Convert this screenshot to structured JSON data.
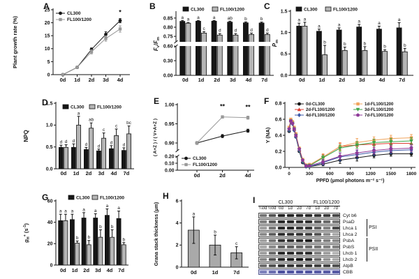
{
  "figure": {
    "background": "#ffffff"
  },
  "palette": {
    "cl300": "#161616",
    "fl_bar": "#b5b5b5",
    "fl_line": "#999999",
    "axis": "#111111"
  },
  "chart_data": [
    {
      "id": "A",
      "panel": "A",
      "type": "line",
      "ylabel": "Plant growth rate (%)",
      "yranges": [
        [
          0,
          25
        ]
      ],
      "yticks": [
        0,
        5,
        10,
        15,
        20,
        25
      ],
      "yticklabels": [
        "0",
        "5",
        "10",
        "15",
        "20",
        "25"
      ],
      "categories": [
        "0d",
        "1d",
        "2d",
        "3d",
        "4d"
      ],
      "series": [
        {
          "name": "CL300",
          "color": "#161616",
          "marker": "circle",
          "values": [
            0,
            2.8,
            9.7,
            15.5,
            20.8
          ],
          "errors": [
            0.2,
            0.4,
            0.6,
            1.0,
            0.8
          ]
        },
        {
          "name": "FL100/1200",
          "color": "#999999",
          "marker": "square",
          "values": [
            0,
            2.8,
            8.8,
            13.9,
            17.6
          ],
          "errors": [
            0.2,
            0.4,
            0.8,
            1.0,
            1.2
          ]
        }
      ],
      "annotations": [
        {
          "cat": 4,
          "value": 23.2,
          "text": "*"
        }
      ]
    },
    {
      "id": "B",
      "panel": "B",
      "type": "bar",
      "ylabel_rich": [
        {
          "t": "F",
          "i": 1
        },
        {
          "t": "v",
          "pos": "sub"
        },
        {
          "t": "/"
        },
        {
          "t": "F",
          "i": 1
        },
        {
          "t": "m",
          "pos": "sub"
        }
      ],
      "yranges": [
        [
          0,
          0.6
        ],
        [
          0.72,
          0.88
        ]
      ],
      "yticks": [
        0,
        0.3,
        0.6,
        0.75,
        0.8,
        0.85
      ],
      "yticklabels": [
        "0.00",
        "0.30",
        "0.60",
        "0.75",
        "0.80",
        "0.85"
      ],
      "categories": [
        "0d",
        "1d",
        "2d",
        "3d",
        "4d",
        "7d"
      ],
      "series": [
        {
          "name": "CL300",
          "color": "#161616",
          "values": [
            0.832,
            0.833,
            0.833,
            0.828,
            0.824,
            0.823
          ],
          "errors": [
            0.005,
            0.004,
            0.004,
            0.005,
            0.005,
            0.005
          ],
          "letters": [
            "a",
            "a",
            "a",
            "ab",
            "b",
            "b"
          ]
        },
        {
          "name": "FL100/1200",
          "color": "#b5b5b5",
          "values": [
            0.822,
            0.768,
            0.757,
            0.757,
            0.76,
            0.76
          ],
          "errors": [
            0.004,
            0.008,
            0.008,
            0.008,
            0.008,
            0.008
          ],
          "letters": [
            "a",
            "c",
            "d",
            "d",
            "d",
            "d"
          ]
        }
      ]
    },
    {
      "id": "C",
      "panel": "C",
      "type": "bar",
      "ylabel_rich": [
        {
          "t": "P",
          "i": 1
        },
        {
          "t": "m",
          "pos": "sub"
        }
      ],
      "yranges": [
        [
          0,
          1.5
        ]
      ],
      "yticks": [
        0,
        0.5,
        1.0,
        1.5
      ],
      "yticklabels": [
        "0.0",
        "0.5",
        "1.0",
        "1.5"
      ],
      "categories": [
        "0d",
        "1d",
        "2d",
        "3d",
        "4d",
        "7d"
      ],
      "series": [
        {
          "name": "CL300",
          "color": "#161616",
          "values": [
            1.15,
            1.03,
            1.06,
            1.13,
            1.08,
            1.11
          ],
          "errors": [
            0.07,
            0.05,
            0.05,
            0.06,
            0.07,
            0.12
          ],
          "letters": [
            "a",
            "a",
            "a",
            "a",
            "a",
            "a"
          ]
        },
        {
          "name": "FL100/1200",
          "color": "#b5b5b5",
          "values": [
            1.15,
            0.48,
            0.58,
            0.58,
            0.56,
            0.55
          ],
          "errors": [
            0.09,
            0.22,
            0.08,
            0.09,
            0.04,
            0.08
          ],
          "letters": [
            "a",
            "b",
            "b",
            "b",
            "b",
            "b"
          ]
        }
      ]
    },
    {
      "id": "D",
      "panel": "D",
      "type": "bar",
      "ylabel": "NPQ",
      "yranges": [
        [
          0,
          1.5
        ]
      ],
      "yticks": [
        0,
        0.5,
        1.0,
        1.5
      ],
      "yticklabels": [
        "0.0",
        "0.5",
        "1.0",
        "1.5"
      ],
      "categories": [
        "0d",
        "1d",
        "2d",
        "3d",
        "4d",
        "7d"
      ],
      "series": [
        {
          "name": "CL300",
          "color": "#161616",
          "values": [
            0.49,
            0.49,
            0.44,
            0.41,
            0.46,
            0.42
          ],
          "errors": [
            0.05,
            0.08,
            0.05,
            0.04,
            0.07,
            0.06
          ],
          "letters": [
            "d",
            "d",
            "d",
            "d",
            "d",
            "d"
          ]
        },
        {
          "name": "FL100/1200",
          "color": "#b5b5b5",
          "values": [
            0.49,
            1.0,
            0.93,
            0.7,
            0.76,
            0.8
          ],
          "errors": [
            0.06,
            0.2,
            0.12,
            0.12,
            0.15,
            0.18
          ],
          "letters": [
            "d",
            "a",
            "ab",
            "c",
            "c",
            "bc"
          ]
        }
      ]
    },
    {
      "id": "E",
      "panel": "E",
      "type": "line",
      "ylabel": "( A+Z ) / ( V+A+Z )",
      "yranges": [
        [
          0,
          0.2
        ],
        [
          0.88,
          1.0
        ]
      ],
      "yticks": [
        0,
        0.1,
        0.2,
        0.9,
        0.95,
        1.0
      ],
      "yticklabels": [
        "0.00",
        "0.10",
        "0.20",
        "0.90",
        "0.95",
        "1.00"
      ],
      "categories": [
        "0d",
        "2d",
        "4d"
      ],
      "series": [
        {
          "name": "CL300",
          "color": "#161616",
          "marker": "circle",
          "values": [
            0.9,
            0.918,
            0.932
          ],
          "errors": [
            0.003,
            0.004,
            0.004
          ]
        },
        {
          "name": "FL100/1200",
          "color": "#999999",
          "marker": "square",
          "values": [
            0.9,
            0.968,
            0.966
          ],
          "errors": [
            0.004,
            0.003,
            0.004
          ]
        }
      ],
      "annotations": [
        {
          "cat": 1,
          "value": 0.99,
          "text": "**"
        },
        {
          "cat": 2,
          "value": 0.988,
          "text": "**"
        }
      ]
    },
    {
      "id": "F",
      "panel": "F",
      "type": "line",
      "xnumeric": true,
      "ylabel": "Y (NA)",
      "xlabel": "PPFD (μmol photons m⁻² s⁻¹)",
      "yranges": [
        [
          0,
          0.8
        ]
      ],
      "yticks": [
        0,
        0.2,
        0.4,
        0.6,
        0.8
      ],
      "yticklabels": [
        "0.0",
        "0.2",
        "0.4",
        "0.6",
        "0.8"
      ],
      "xmax": 1800,
      "xticks": [
        0,
        300,
        600,
        900,
        1200,
        1500,
        1800
      ],
      "xticklabels": [
        "0",
        "300",
        "600",
        "900",
        "1200",
        "1500",
        "1800"
      ],
      "x": [
        0,
        25,
        50,
        75,
        100,
        150,
        200,
        250,
        300,
        500,
        750,
        1000,
        1250,
        1500,
        1800
      ],
      "series": [
        {
          "name": "0d-CL300",
          "color": "#161616",
          "marker": "circle",
          "values": [
            0.45,
            0.58,
            0.55,
            0.47,
            0.38,
            0.2,
            0.06,
            0.01,
            0.01,
            0.04,
            0.09,
            0.12,
            0.15,
            0.17,
            0.17
          ],
          "errors": [
            0,
            0,
            0,
            0,
            0,
            0,
            0,
            0,
            0.01,
            0.02,
            0.04,
            0.04,
            0.03,
            0.03,
            0.03
          ]
        },
        {
          "name": "2d-FL100/1200",
          "color": "#e03c31",
          "marker": "tri",
          "values": [
            0.47,
            0.59,
            0.56,
            0.48,
            0.4,
            0.22,
            0.08,
            0.02,
            0.03,
            0.13,
            0.26,
            0.28,
            0.29,
            0.3,
            0.3
          ],
          "errors": [
            0,
            0,
            0,
            0,
            0,
            0,
            0,
            0,
            0.02,
            0.03,
            0.04,
            0.04,
            0.04,
            0.04,
            0.04
          ]
        },
        {
          "name": "4d-FL100/1200",
          "color": "#3a57a7",
          "marker": "diamond",
          "values": [
            0.46,
            0.57,
            0.54,
            0.46,
            0.38,
            0.21,
            0.07,
            0.01,
            0.01,
            0.06,
            0.13,
            0.16,
            0.19,
            0.21,
            0.22
          ],
          "errors": [
            0,
            0,
            0,
            0,
            0,
            0,
            0,
            0,
            0.01,
            0.03,
            0.05,
            0.05,
            0.04,
            0.04,
            0.04
          ]
        },
        {
          "name": "1d-FL100/1200",
          "color": "#f2a45c",
          "marker": "square",
          "values": [
            0.5,
            0.6,
            0.57,
            0.5,
            0.42,
            0.24,
            0.1,
            0.03,
            0.03,
            0.13,
            0.26,
            0.31,
            0.34,
            0.36,
            0.37
          ],
          "errors": [
            0,
            0,
            0,
            0,
            0,
            0,
            0,
            0,
            0.02,
            0.04,
            0.05,
            0.05,
            0.04,
            0.04,
            0.04
          ]
        },
        {
          "name": "3d-FL100/1200",
          "color": "#3da548",
          "marker": "tridown",
          "values": [
            0.47,
            0.58,
            0.55,
            0.48,
            0.4,
            0.22,
            0.08,
            0.02,
            0.02,
            0.12,
            0.24,
            0.28,
            0.31,
            0.32,
            0.33
          ],
          "errors": [
            0,
            0,
            0,
            0,
            0,
            0,
            0,
            0,
            0.02,
            0.03,
            0.04,
            0.04,
            0.04,
            0.04,
            0.04
          ]
        },
        {
          "name": "7d-FL100/1200",
          "color": "#8e3a98",
          "marker": "pent",
          "values": [
            0.48,
            0.58,
            0.55,
            0.48,
            0.4,
            0.23,
            0.09,
            0.02,
            0.02,
            0.07,
            0.14,
            0.18,
            0.21,
            0.23,
            0.24
          ],
          "errors": [
            0,
            0,
            0,
            0,
            0,
            0,
            0,
            0,
            0.01,
            0.03,
            0.04,
            0.04,
            0.04,
            0.04,
            0.04
          ]
        }
      ]
    },
    {
      "id": "G",
      "panel": "G",
      "type": "bar",
      "ylabel_rich": [
        {
          "t": "g",
          "i": 1
        },
        {
          "t": "H",
          "pos": "sub"
        },
        {
          "t": "+",
          "pos": "sup"
        },
        {
          "t": " (s"
        },
        {
          "t": "-1",
          "pos": "sup"
        },
        {
          "t": ")"
        }
      ],
      "yranges": [
        [
          0,
          60
        ]
      ],
      "yticks": [
        0,
        20,
        40,
        60
      ],
      "yticklabels": [
        "0",
        "20",
        "40",
        "60"
      ],
      "categories": [
        "0d",
        "1d",
        "2d",
        "3d",
        "4d",
        "7d"
      ],
      "series": [
        {
          "name": "CL300",
          "color": "#161616",
          "values": [
            41.5,
            42.5,
            44,
            44,
            46.5,
            43.5
          ],
          "errors": [
            6,
            5,
            5,
            4,
            6,
            7
          ],
          "letters": [
            "a",
            "a",
            "a",
            "a",
            "a",
            "a"
          ]
        },
        {
          "name": "FL100/1200",
          "color": "#b5b5b5",
          "values": [
            41.5,
            20.5,
            19,
            26,
            26,
            19
          ],
          "errors": [
            6,
            2,
            4,
            7,
            7,
            2
          ],
          "letters": [
            "a",
            "b",
            "b",
            "b",
            "b",
            "b"
          ]
        }
      ]
    },
    {
      "id": "H",
      "panel": "H",
      "type": "bar",
      "ylabel": "Grana stack thickness (μm)",
      "yranges": [
        [
          0,
          6
        ]
      ],
      "yticks": [
        0,
        2,
        4,
        6
      ],
      "yticklabels": [
        "0",
        "2",
        "4",
        "6"
      ],
      "categories": [
        "0d",
        "1d",
        "7d"
      ],
      "series": [
        {
          "name": "",
          "color": "#a9a9a9",
          "values": [
            3.35,
            2.0,
            1.3
          ],
          "errors": [
            1.2,
            0.9,
            0.55
          ],
          "letters": [
            "a",
            "b",
            "c"
          ]
        }
      ]
    }
  ],
  "blot": {
    "panel": "I",
    "groups": [
      {
        "label": "CL300",
        "span": 6
      },
      {
        "label": "FL100/1200",
        "span": 3
      }
    ],
    "lanes": [
      "¼0d",
      "½0d",
      "0d",
      "1d",
      "2d",
      "7d",
      "1d",
      "2d",
      "7d"
    ],
    "complexes": [
      {
        "label": "PSI",
        "rows": [
          1,
          3
        ]
      },
      {
        "label": "PSII",
        "rows": [
          4,
          7
        ]
      }
    ],
    "rows": [
      {
        "name": "Cyt b6",
        "bands": [
          0.55,
          0.7,
          0.92,
          0.92,
          0.9,
          0.9,
          0.85,
          0.82,
          0.75
        ]
      },
      {
        "name": "PsaD",
        "bands": [
          0.5,
          0.68,
          0.9,
          0.9,
          0.88,
          0.88,
          0.7,
          0.6,
          0.55
        ]
      },
      {
        "name": "Lhca 1",
        "bands": [
          0.35,
          0.55,
          0.9,
          0.92,
          0.85,
          0.85,
          0.65,
          0.5,
          0.75
        ]
      },
      {
        "name": "Lhca 2",
        "bands": [
          0.45,
          0.65,
          0.88,
          0.86,
          0.85,
          0.8,
          0.7,
          0.45,
          0.3
        ]
      },
      {
        "name": "PsbA",
        "bands": [
          0.35,
          0.55,
          0.85,
          0.88,
          0.9,
          0.95,
          0.55,
          0.5,
          0.45
        ]
      },
      {
        "name": "PsbS",
        "bands": [
          0.3,
          0.45,
          0.65,
          0.65,
          0.62,
          0.6,
          0.55,
          0.5,
          0.5
        ]
      },
      {
        "name": "Lhcb 1",
        "bands": [
          0.35,
          0.6,
          0.9,
          0.9,
          0.85,
          0.88,
          0.5,
          0.35,
          0.25
        ]
      },
      {
        "name": "Lhcb 2",
        "bands": [
          0.45,
          0.7,
          0.92,
          0.95,
          1.0,
          0.9,
          0.6,
          0.4,
          0.3
        ]
      },
      {
        "name": "AtpB",
        "bands": [
          0.6,
          0.72,
          0.88,
          0.86,
          0.86,
          0.85,
          0.8,
          0.78,
          0.72
        ]
      },
      {
        "name": "CBB",
        "cbb": true,
        "bands": [
          0.6,
          0.72,
          0.92,
          0.9,
          0.9,
          0.9,
          0.85,
          0.85,
          0.85
        ]
      }
    ]
  }
}
